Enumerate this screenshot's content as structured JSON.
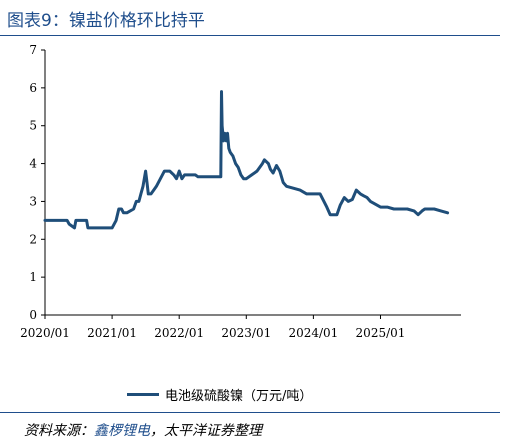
{
  "figure": {
    "title": "图表9：镍盐价格环比持平",
    "source_label": "资料来源：",
    "source_a": "鑫椤锂电",
    "source_sep": "，",
    "source_b": "太平洋证券整理"
  },
  "chart_data": {
    "type": "line",
    "title": "",
    "xlabel": "",
    "ylabel": "",
    "ylim": [
      0,
      7
    ],
    "yticks": [
      0,
      1,
      2,
      3,
      4,
      5,
      6,
      7
    ],
    "xlim": [
      2020.0,
      2026.2
    ],
    "xtick_values": [
      2020.0,
      2021.0,
      2022.0,
      2023.0,
      2024.0,
      2025.0
    ],
    "xtick_labels": [
      "2020/01",
      "2021/01",
      "2022/01",
      "2023/01",
      "2024/01",
      "2025/01"
    ],
    "grid": false,
    "legend_position": "bottom",
    "series": [
      {
        "name": "电池级硫酸镍（万元/吨）",
        "color": "#1f4e79",
        "x": [
          2020.0,
          2020.33,
          2020.36,
          2020.44,
          2020.46,
          2020.62,
          2020.64,
          2021.0,
          2021.06,
          2021.1,
          2021.14,
          2021.17,
          2021.22,
          2021.32,
          2021.36,
          2021.4,
          2021.43,
          2021.46,
          2021.5,
          2021.52,
          2021.54,
          2021.58,
          2021.62,
          2021.66,
          2021.72,
          2021.78,
          2021.82,
          2021.86,
          2021.92,
          2021.96,
          2022.0,
          2022.04,
          2022.08,
          2022.12,
          2022.16,
          2022.2,
          2022.24,
          2022.28,
          2022.4,
          2022.5,
          2022.58,
          2022.62,
          2022.63,
          2022.64,
          2022.66,
          2022.68,
          2022.7,
          2022.72,
          2022.74,
          2022.76,
          2022.8,
          2022.84,
          2022.88,
          2022.92,
          2022.96,
          2022.98,
          2023.0,
          2023.08,
          2023.16,
          2023.24,
          2023.27,
          2023.3,
          2023.33,
          2023.36,
          2023.4,
          2023.45,
          2023.5,
          2023.55,
          2023.6,
          2023.7,
          2023.8,
          2023.9,
          2024.0,
          2024.1,
          2024.2,
          2024.25,
          2024.3,
          2024.35,
          2024.4,
          2024.46,
          2024.52,
          2024.58,
          2024.64,
          2024.7,
          2024.75,
          2024.8,
          2024.85,
          2024.9,
          2025.0,
          2025.1,
          2025.2,
          2025.3,
          2025.4,
          2025.5,
          2025.56,
          2025.62,
          2025.66,
          2025.7,
          2025.8,
          2025.9,
          2026.0
        ],
        "values": [
          2.5,
          2.5,
          2.4,
          2.3,
          2.5,
          2.5,
          2.3,
          2.3,
          2.5,
          2.8,
          2.8,
          2.7,
          2.7,
          2.8,
          3.0,
          3.0,
          3.2,
          3.4,
          3.8,
          3.5,
          3.2,
          3.2,
          3.3,
          3.4,
          3.6,
          3.8,
          3.8,
          3.8,
          3.7,
          3.6,
          3.8,
          3.6,
          3.7,
          3.7,
          3.7,
          3.7,
          3.7,
          3.65,
          3.65,
          3.65,
          3.65,
          3.65,
          5.9,
          5.0,
          4.6,
          4.8,
          4.6,
          4.8,
          4.4,
          4.3,
          4.2,
          4.0,
          3.9,
          3.7,
          3.6,
          3.6,
          3.6,
          3.7,
          3.8,
          4.0,
          4.1,
          4.05,
          4.0,
          3.85,
          3.75,
          3.95,
          3.8,
          3.5,
          3.4,
          3.35,
          3.3,
          3.2,
          3.2,
          3.2,
          2.85,
          2.65,
          2.65,
          2.65,
          2.9,
          3.1,
          3.0,
          3.05,
          3.3,
          3.2,
          3.15,
          3.1,
          3.0,
          2.95,
          2.85,
          2.85,
          2.8,
          2.8,
          2.8,
          2.75,
          2.65,
          2.75,
          2.8,
          2.8,
          2.8,
          2.75,
          2.7
        ]
      }
    ]
  }
}
